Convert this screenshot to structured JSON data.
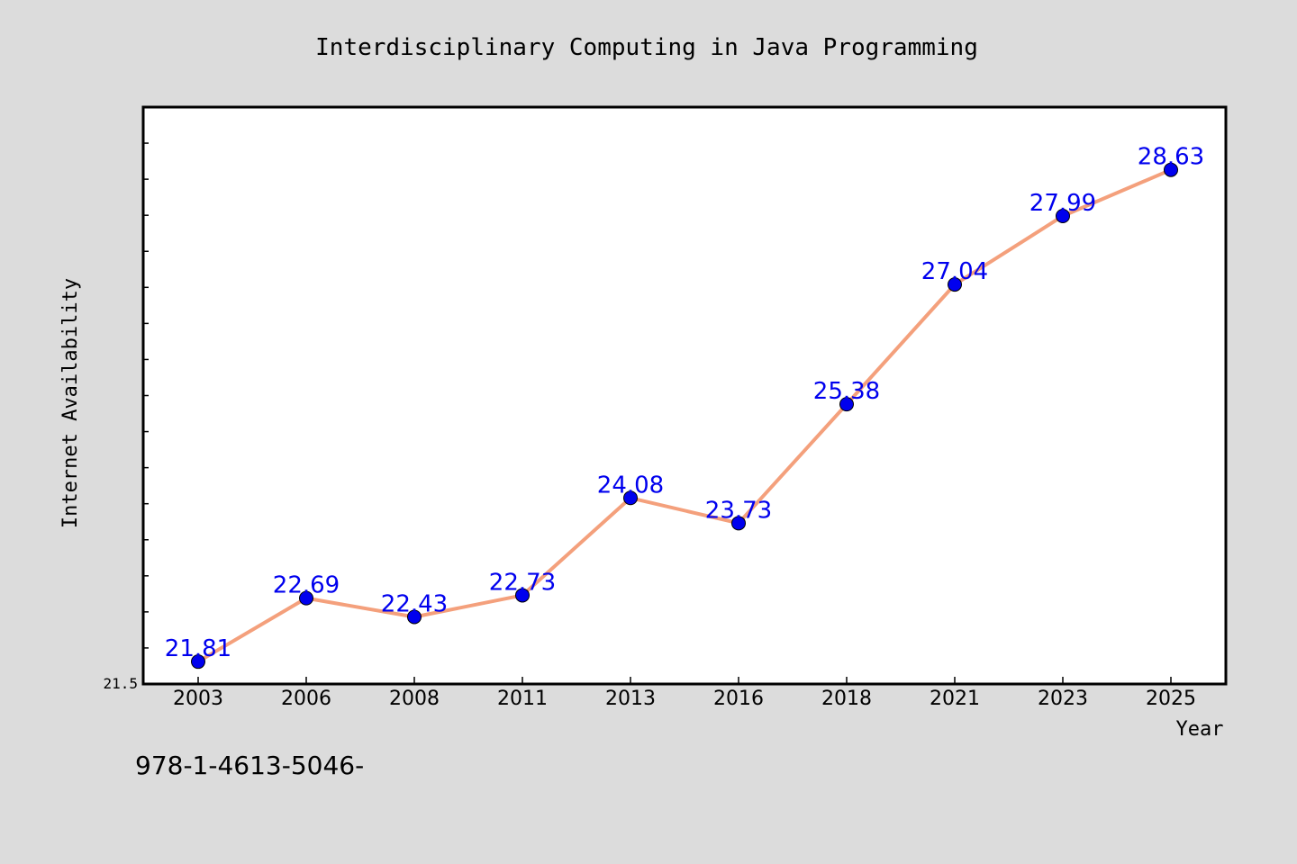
{
  "chart_data": {
    "type": "line",
    "title": "Interdisciplinary Computing in Java Programming",
    "xlabel": "Year",
    "ylabel": "Internet Availability",
    "categories": [
      "2003",
      "2006",
      "2008",
      "2011",
      "2013",
      "2016",
      "2018",
      "2021",
      "2023",
      "2025"
    ],
    "series": [
      {
        "values": [
          21.81,
          22.69,
          22.43,
          22.73,
          24.08,
          23.73,
          25.38,
          27.04,
          27.99,
          28.63
        ]
      }
    ],
    "y_tick_labels": [
      "21.5"
    ],
    "ylim": [
      21.5,
      29.5
    ],
    "grid": false,
    "line_color": "#f4a07c",
    "marker_color": "#0000ee",
    "label_color": "#0000ee"
  },
  "footer": {
    "isbn": "978-1-4613-5046-"
  }
}
